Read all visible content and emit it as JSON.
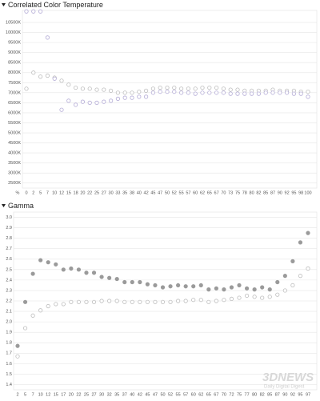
{
  "chart_data": [
    {
      "type": "scatter",
      "title": "Correlated Color Temperature",
      "x_label": "%",
      "categories": [
        "0",
        "2",
        "5",
        "7",
        "10",
        "12",
        "15",
        "18",
        "20",
        "22",
        "25",
        "27",
        "30",
        "33",
        "35",
        "38",
        "40",
        "42",
        "45",
        "47",
        "50",
        "52",
        "55",
        "57",
        "60",
        "62",
        "65",
        "67",
        "70",
        "73",
        "75",
        "78",
        "80",
        "82",
        "85",
        "87",
        "90",
        "92",
        "95",
        "98",
        "100"
      ],
      "series": [
        {
          "color": "#bdbdbd",
          "filled": false,
          "values": [
            7200,
            8000,
            7800,
            7850,
            7750,
            7600,
            7400,
            7250,
            7200,
            7200,
            7150,
            7150,
            7100,
            7000,
            7000,
            7000,
            7050,
            7100,
            7200,
            7250,
            7250,
            7250,
            7200,
            7200,
            7200,
            7250,
            7250,
            7250,
            7200,
            7150,
            7150,
            7100,
            7100,
            7100,
            7100,
            7150,
            7100,
            7100,
            7100,
            7050,
            7050
          ]
        },
        {
          "color": "#b4acd6",
          "filled": false,
          "values": [
            11050,
            11050,
            11050,
            9750,
            7700,
            6150,
            6600,
            6400,
            6550,
            6500,
            6500,
            6550,
            6600,
            6700,
            6750,
            6750,
            6800,
            6800,
            7000,
            7050,
            7050,
            7050,
            7000,
            7000,
            6950,
            7000,
            7000,
            7000,
            7000,
            6950,
            6950,
            6950,
            6950,
            6950,
            7000,
            7000,
            7000,
            7000,
            6950,
            6950,
            6800
          ]
        }
      ],
      "ylim": [
        2250,
        11100
      ],
      "yticks": [
        {
          "value": 2500,
          "label": "2500K"
        },
        {
          "value": 3000,
          "label": "3000K"
        },
        {
          "value": 3500,
          "label": "3500K"
        },
        {
          "value": 4000,
          "label": "4000K"
        },
        {
          "value": 4500,
          "label": "4500K"
        },
        {
          "value": 5000,
          "label": "5000K"
        },
        {
          "value": 5500,
          "label": "5500K"
        },
        {
          "value": 6000,
          "label": "6000K"
        },
        {
          "value": 6500,
          "label": "6500K"
        },
        {
          "value": 7000,
          "label": "7000K"
        },
        {
          "value": 7500,
          "label": "7500K"
        },
        {
          "value": 8000,
          "label": "8000K"
        },
        {
          "value": 8500,
          "label": "8500K"
        },
        {
          "value": 9000,
          "label": "9000K"
        },
        {
          "value": 9500,
          "label": "9500K"
        },
        {
          "value": 10000,
          "label": "10000K"
        },
        {
          "value": 10500,
          "label": "10500K"
        }
      ],
      "grid": true
    },
    {
      "type": "scatter",
      "title": "Gamma",
      "categories": [
        "2",
        "5",
        "7",
        "10",
        "12",
        "15",
        "17",
        "20",
        "22",
        "25",
        "27",
        "30",
        "32",
        "35",
        "37",
        "40",
        "42",
        "45",
        "47",
        "50",
        "52",
        "55",
        "57",
        "60",
        "62",
        "65",
        "67",
        "70",
        "72",
        "75",
        "77",
        "80",
        "82",
        "85",
        "87",
        "90",
        "92",
        "95",
        "97"
      ],
      "series": [
        {
          "color": "#9a9a9a",
          "filled": true,
          "values": [
            1.77,
            2.19,
            2.46,
            2.59,
            2.57,
            2.55,
            2.5,
            2.51,
            2.5,
            2.47,
            2.47,
            2.43,
            2.42,
            2.41,
            2.38,
            2.38,
            2.38,
            2.36,
            2.35,
            2.33,
            2.34,
            2.35,
            2.34,
            2.34,
            2.35,
            2.31,
            2.32,
            2.31,
            2.33,
            2.35,
            2.32,
            2.31,
            2.33,
            2.31,
            2.38,
            2.44,
            2.58,
            2.76,
            2.85
          ]
        },
        {
          "color": "#bdbdbd",
          "filled": false,
          "values": [
            1.67,
            1.94,
            2.06,
            2.11,
            2.15,
            2.17,
            2.17,
            2.19,
            2.19,
            2.19,
            2.19,
            2.2,
            2.2,
            2.2,
            2.19,
            2.19,
            2.19,
            2.19,
            2.19,
            2.19,
            2.19,
            2.2,
            2.2,
            2.21,
            2.21,
            2.19,
            2.2,
            2.21,
            2.22,
            2.23,
            2.25,
            2.24,
            2.23,
            2.24,
            2.26,
            2.3,
            2.35,
            2.44,
            2.51
          ]
        }
      ],
      "ylim": [
        1.35,
        3.05
      ],
      "yticks": [
        1.4,
        1.5,
        1.6,
        1.7,
        1.8,
        1.9,
        {
          "value": 2,
          "label": "2.0"
        },
        2.1,
        2.2,
        2.3,
        2.4,
        2.5,
        2.6,
        2.7,
        2.8,
        2.9,
        {
          "value": 3,
          "label": "3.0"
        }
      ],
      "grid": true
    }
  ],
  "watermark": {
    "brand": "3DNEWS",
    "tagline": "Daily Digital Digest"
  }
}
